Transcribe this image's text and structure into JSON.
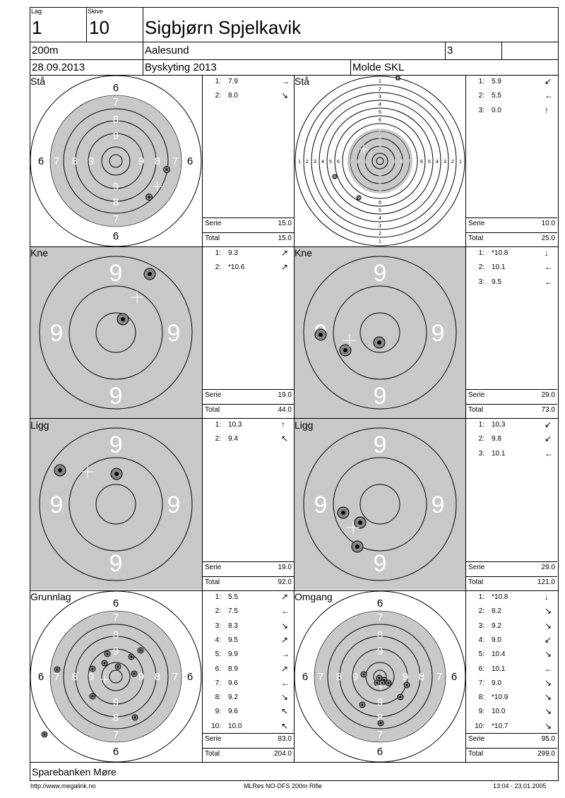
{
  "header": {
    "lag_label": "Lag",
    "lag_value": "1",
    "skive_label": "Skive",
    "skive_value": "10",
    "shooter_name": "Sigbjørn Spjelkavik",
    "distance": "200m",
    "place": "Aalesund",
    "class": "3",
    "date": "28.09.2013",
    "event": "Byskyting 2013",
    "club": "Molde SKL"
  },
  "panels": [
    {
      "label": "Stå",
      "shots": [
        {
          "n": "1:",
          "v": "7.9",
          "arrow": "→"
        },
        {
          "n": "2:",
          "v": "8.0",
          "arrow": "↘"
        }
      ],
      "serie_label": "Serie",
      "serie": "15.0",
      "total_label": "Total",
      "total": "15.0"
    },
    {
      "label": "Stå",
      "shots": [
        {
          "n": "1:",
          "v": "5.9",
          "arrow": "↙"
        },
        {
          "n": "2:",
          "v": "5.5",
          "arrow": "←"
        },
        {
          "n": "3:",
          "v": "0.0",
          "arrow": "↑"
        }
      ],
      "serie_label": "Serie",
      "serie": "10.0",
      "total_label": "Total",
      "total": "25.0"
    },
    {
      "label": "Kne",
      "shots": [
        {
          "n": "1:",
          "v": "9.3",
          "arrow": "↗"
        },
        {
          "n": "2:",
          "v": "*10.6",
          "arrow": "↗"
        }
      ],
      "serie_label": "Serie",
      "serie": "19.0",
      "total_label": "Total",
      "total": "44.0"
    },
    {
      "label": "Kne",
      "shots": [
        {
          "n": "1:",
          "v": "*10.8",
          "arrow": "↓"
        },
        {
          "n": "2:",
          "v": "10.1",
          "arrow": "←"
        },
        {
          "n": "3:",
          "v": "9.5",
          "arrow": "←"
        }
      ],
      "serie_label": "Serie",
      "serie": "29.0",
      "total_label": "Total",
      "total": "73.0"
    },
    {
      "label": "Ligg",
      "shots": [
        {
          "n": "1:",
          "v": "10.3",
          "arrow": "↑"
        },
        {
          "n": "2:",
          "v": "9.4",
          "arrow": "↖"
        }
      ],
      "serie_label": "Serie",
      "serie": "19.0",
      "total_label": "Total",
      "total": "92.0"
    },
    {
      "label": "Ligg",
      "shots": [
        {
          "n": "1:",
          "v": "10.3",
          "arrow": "↙"
        },
        {
          "n": "2:",
          "v": "9.8",
          "arrow": "↙"
        },
        {
          "n": "3:",
          "v": "10.1",
          "arrow": "←"
        }
      ],
      "serie_label": "Serie",
      "serie": "29.0",
      "total_label": "Total",
      "total": "121.0"
    },
    {
      "label": "Grunnlag",
      "shots": [
        {
          "n": "1:",
          "v": "5.5",
          "arrow": "↗"
        },
        {
          "n": "2:",
          "v": "7.5",
          "arrow": "←"
        },
        {
          "n": "3:",
          "v": "8.3",
          "arrow": "↘"
        },
        {
          "n": "4:",
          "v": "9.5",
          "arrow": "↗"
        },
        {
          "n": "5:",
          "v": "9.9",
          "arrow": "→"
        },
        {
          "n": "6:",
          "v": "8.9",
          "arrow": "↗"
        },
        {
          "n": "7:",
          "v": "9.6",
          "arrow": "←"
        },
        {
          "n": "8:",
          "v": "9.2",
          "arrow": "↘"
        },
        {
          "n": "9:",
          "v": "9.6",
          "arrow": "↖"
        },
        {
          "n": "10:",
          "v": "10.0",
          "arrow": "↖"
        }
      ],
      "serie_label": "Serie",
      "serie": "83.0",
      "total_label": "Total",
      "total": "204.0"
    },
    {
      "label": "Omgang",
      "shots": [
        {
          "n": "1:",
          "v": "*10.8",
          "arrow": "↓"
        },
        {
          "n": "2:",
          "v": "8.2",
          "arrow": "↘"
        },
        {
          "n": "3:",
          "v": "9.2",
          "arrow": "↘"
        },
        {
          "n": "4:",
          "v": "9.0",
          "arrow": "↙"
        },
        {
          "n": "5:",
          "v": "10.4",
          "arrow": "↘"
        },
        {
          "n": "6:",
          "v": "10.1",
          "arrow": "←"
        },
        {
          "n": "7:",
          "v": "9.0",
          "arrow": "↘"
        },
        {
          "n": "8:",
          "v": "*10.9",
          "arrow": "↘"
        },
        {
          "n": "9:",
          "v": "10.0",
          "arrow": "↘"
        },
        {
          "n": "10:",
          "v": "*10.7",
          "arrow": "↘"
        }
      ],
      "serie_label": "Serie",
      "serie": "95.0",
      "total_label": "Total",
      "total": "299.0"
    }
  ],
  "sponsor": "Sparebanken Møre",
  "footer": {
    "url": "http://www.megalink.no",
    "program": "MLRes NO-DFS 200m Rifle",
    "timestamp": "13:04 - 23.01.2005"
  },
  "target_labels": {
    "ring_6": "6",
    "ring_7": "7",
    "ring_8": "8",
    "ring_9": "9",
    "ring_numbers": [
      "1",
      "2",
      "3",
      "4",
      "5",
      "6",
      "7",
      "8",
      "9"
    ]
  }
}
